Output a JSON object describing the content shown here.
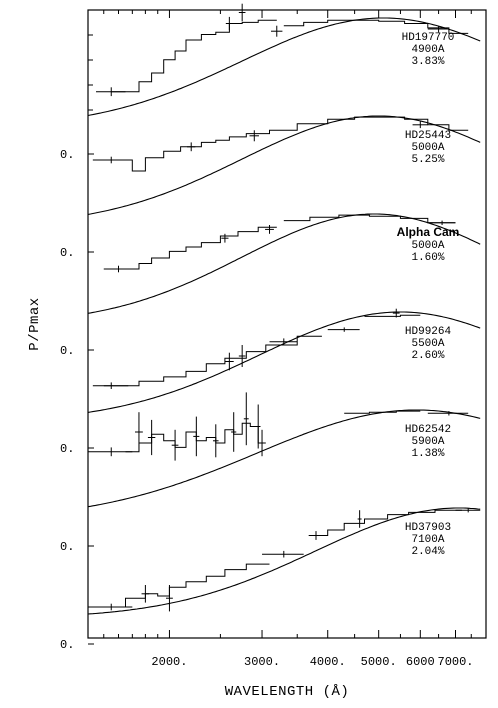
{
  "chart_data": {
    "type": "line",
    "xlabel": "WAVELENGTH (Å)",
    "ylabel": "P/Pmax",
    "x_scale": "log",
    "xlim": [
      1400,
      8000
    ],
    "x_tick_values": [
      2000,
      3000,
      4000,
      5000,
      6000,
      7000
    ],
    "x_tick_labels": [
      "2000.",
      "3000.",
      "4000.",
      "5000.",
      "6000",
      "7000."
    ],
    "y_tick_label": "0.",
    "panels": [
      {
        "name": "HD197770",
        "lines": [
          "HD197770",
          "4900A",
          "3.83%"
        ],
        "style": "normal",
        "lambda_max": 4900,
        "curve_peak": 5100,
        "curve_width": 0.62,
        "steps": [
          [
            1550,
            1750,
            0.33
          ],
          [
            1750,
            1850,
            0.42
          ],
          [
            1850,
            1950,
            0.5
          ],
          [
            1950,
            2050,
            0.62
          ],
          [
            2050,
            2150,
            0.7
          ],
          [
            2150,
            2300,
            0.8
          ],
          [
            2300,
            2450,
            0.85
          ],
          [
            2450,
            2600,
            0.87
          ],
          [
            2600,
            2750,
            0.95
          ],
          [
            2750,
            2950,
            0.96
          ],
          [
            2950,
            3200,
            0.98
          ],
          [
            3300,
            3600,
            0.93
          ],
          [
            3600,
            4000,
            0.96
          ],
          [
            4000,
            4500,
            0.98
          ],
          [
            4500,
            5000,
            0.98
          ],
          [
            5000,
            5600,
            0.97
          ],
          [
            5600,
            6200,
            0.95
          ],
          [
            6200,
            6800,
            0.91
          ],
          [
            6800,
            7400,
            0.86
          ]
        ],
        "error_points": [
          [
            1550,
            0.33,
            100,
            0.04
          ],
          [
            2600,
            0.95,
            40,
            0.06
          ],
          [
            2750,
            1.05,
            40,
            0.08
          ],
          [
            3200,
            0.88,
            80,
            0.05
          ],
          [
            6500,
            0.9,
            300,
            0.03
          ]
        ]
      },
      {
        "name": "HD25443",
        "lines": [
          "HD25443",
          "5000A",
          "5.25%"
        ],
        "style": "normal",
        "lambda_max": 5000,
        "curve_peak": 5000,
        "curve_width": 0.6,
        "steps": [
          [
            1500,
            1700,
            0.6
          ],
          [
            1700,
            1800,
            0.5
          ],
          [
            1800,
            1950,
            0.62
          ],
          [
            1950,
            2100,
            0.68
          ],
          [
            2100,
            2300,
            0.72
          ],
          [
            2300,
            2450,
            0.76
          ],
          [
            2450,
            2600,
            0.78
          ],
          [
            2600,
            2800,
            0.81
          ],
          [
            2800,
            3100,
            0.84
          ],
          [
            3100,
            3500,
            0.87
          ],
          [
            3500,
            4000,
            0.93
          ],
          [
            4000,
            4500,
            0.97
          ],
          [
            4500,
            5000,
            0.99
          ],
          [
            5000,
            5600,
            0.99
          ],
          [
            5600,
            6200,
            0.97
          ],
          [
            6200,
            6800,
            0.92
          ],
          [
            6800,
            7400,
            0.87
          ]
        ],
        "error_points": [
          [
            1550,
            0.6,
            120,
            0.03
          ],
          [
            2200,
            0.72,
            40,
            0.04
          ],
          [
            2900,
            0.82,
            60,
            0.05
          ],
          [
            6000,
            0.92,
            200,
            0.03
          ]
        ]
      },
      {
        "name": "Alpha Cam",
        "lines": [
          "Alpha Cam",
          "5000A",
          "1.60%"
        ],
        "style": "bold",
        "lambda_max": 5000,
        "curve_peak": 4900,
        "curve_width": 0.58,
        "steps": [
          [
            1550,
            1750,
            0.5
          ],
          [
            1750,
            1850,
            0.55
          ],
          [
            1850,
            2000,
            0.6
          ],
          [
            2000,
            2150,
            0.66
          ],
          [
            2150,
            2300,
            0.7
          ],
          [
            2300,
            2500,
            0.74
          ],
          [
            2500,
            2700,
            0.8
          ],
          [
            2700,
            2950,
            0.84
          ],
          [
            2950,
            3200,
            0.88
          ],
          [
            3300,
            3700,
            0.94
          ],
          [
            3700,
            4200,
            0.97
          ],
          [
            4200,
            4800,
            0.99
          ],
          [
            4800,
            5500,
            0.98
          ],
          [
            5500,
            6200,
            0.96
          ],
          [
            6200,
            7000,
            0.92
          ]
        ],
        "error_points": [
          [
            1600,
            0.5,
            100,
            0.03
          ],
          [
            2550,
            0.78,
            40,
            0.04
          ],
          [
            3100,
            0.86,
            60,
            0.04
          ],
          [
            6600,
            0.92,
            400,
            0.02
          ]
        ]
      },
      {
        "name": "HD99264",
        "lines": [
          "HD99264",
          "5500A",
          "2.60%"
        ],
        "style": "normal",
        "lambda_max": 5500,
        "curve_peak": 5500,
        "curve_width": 0.62,
        "steps": [
          [
            1500,
            1750,
            0.33
          ],
          [
            1750,
            1950,
            0.37
          ],
          [
            1950,
            2150,
            0.41
          ],
          [
            2150,
            2350,
            0.46
          ],
          [
            2350,
            2550,
            0.53
          ],
          [
            2550,
            2800,
            0.58
          ],
          [
            2800,
            3050,
            0.64
          ],
          [
            3050,
            3500,
            0.7
          ],
          [
            3500,
            3900,
            0.78
          ],
          [
            4700,
            5500,
            0.96
          ],
          [
            5500,
            6000,
            0.97
          ]
        ],
        "error_points": [
          [
            1550,
            0.33,
            120,
            0.03
          ],
          [
            2600,
            0.55,
            50,
            0.08
          ],
          [
            2750,
            0.6,
            40,
            0.1
          ],
          [
            3300,
            0.73,
            200,
            0.03
          ],
          [
            4300,
            0.84,
            300,
            0.02
          ],
          [
            5400,
            0.99,
            80,
            0.04
          ]
        ]
      },
      {
        "name": "HD62542",
        "lines": [
          "HD62542",
          "5900A",
          "1.38%"
        ],
        "style": "normal",
        "lambda_max": 5900,
        "curve_peak": 5900,
        "curve_width": 0.7,
        "steps": [
          [
            1650,
            1750,
            0.62
          ],
          [
            1750,
            1850,
            0.7
          ],
          [
            1850,
            1950,
            0.78
          ],
          [
            1950,
            2050,
            0.72
          ],
          [
            2050,
            2150,
            0.66
          ],
          [
            2150,
            2250,
            0.8
          ],
          [
            2250,
            2350,
            0.72
          ],
          [
            2350,
            2450,
            0.75
          ],
          [
            2450,
            2550,
            0.7
          ],
          [
            2550,
            2650,
            0.82
          ],
          [
            2650,
            2750,
            0.78
          ],
          [
            2750,
            2850,
            0.88
          ],
          [
            2850,
            2950,
            0.85
          ],
          [
            2950,
            3050,
            0.7
          ],
          [
            4300,
            4800,
            0.97
          ],
          [
            4800,
            5400,
            0.98
          ],
          [
            5400,
            6000,
            0.99
          ]
        ],
        "error_points": [
          [
            1550,
            0.62,
            150,
            0.04
          ],
          [
            1750,
            0.8,
            30,
            0.18
          ],
          [
            1850,
            0.75,
            30,
            0.16
          ],
          [
            2050,
            0.68,
            30,
            0.14
          ],
          [
            2250,
            0.76,
            30,
            0.18
          ],
          [
            2450,
            0.72,
            30,
            0.15
          ],
          [
            2650,
            0.8,
            30,
            0.18
          ],
          [
            2800,
            0.92,
            30,
            0.24
          ],
          [
            2950,
            0.85,
            30,
            0.2
          ],
          [
            3000,
            0.7,
            30,
            0.12
          ],
          [
            6800,
            0.97,
            600,
            0.02
          ]
        ]
      },
      {
        "name": "HD37903",
        "lines": [
          "HD37903",
          "7100A",
          "2.04%"
        ],
        "style": "normal",
        "lambda_max": 7100,
        "curve_peak": 7100,
        "curve_width": 0.63,
        "steps": [
          [
            1500,
            1650,
            0.1
          ],
          [
            1650,
            1800,
            0.18
          ],
          [
            1800,
            1900,
            0.22
          ],
          [
            1900,
            2000,
            0.2
          ],
          [
            2000,
            2150,
            0.28
          ],
          [
            2150,
            2350,
            0.33
          ],
          [
            2350,
            2550,
            0.38
          ],
          [
            2550,
            2800,
            0.44
          ],
          [
            2800,
            3100,
            0.49
          ],
          [
            3700,
            4000,
            0.75
          ],
          [
            4000,
            4300,
            0.8
          ],
          [
            4300,
            4700,
            0.86
          ],
          [
            4700,
            5200,
            0.9
          ],
          [
            5200,
            5700,
            0.94
          ],
          [
            5700,
            6400,
            0.96
          ],
          [
            6400,
            7200,
            0.98
          ]
        ],
        "error_points": [
          [
            1550,
            0.1,
            150,
            0.03
          ],
          [
            1800,
            0.22,
            30,
            0.08
          ],
          [
            2000,
            0.18,
            30,
            0.12
          ],
          [
            3300,
            0.58,
            300,
            0.03
          ],
          [
            3800,
            0.75,
            120,
            0.04
          ],
          [
            4600,
            0.9,
            40,
            0.08
          ],
          [
            7400,
            0.98,
            400,
            0.02
          ]
        ]
      }
    ]
  }
}
